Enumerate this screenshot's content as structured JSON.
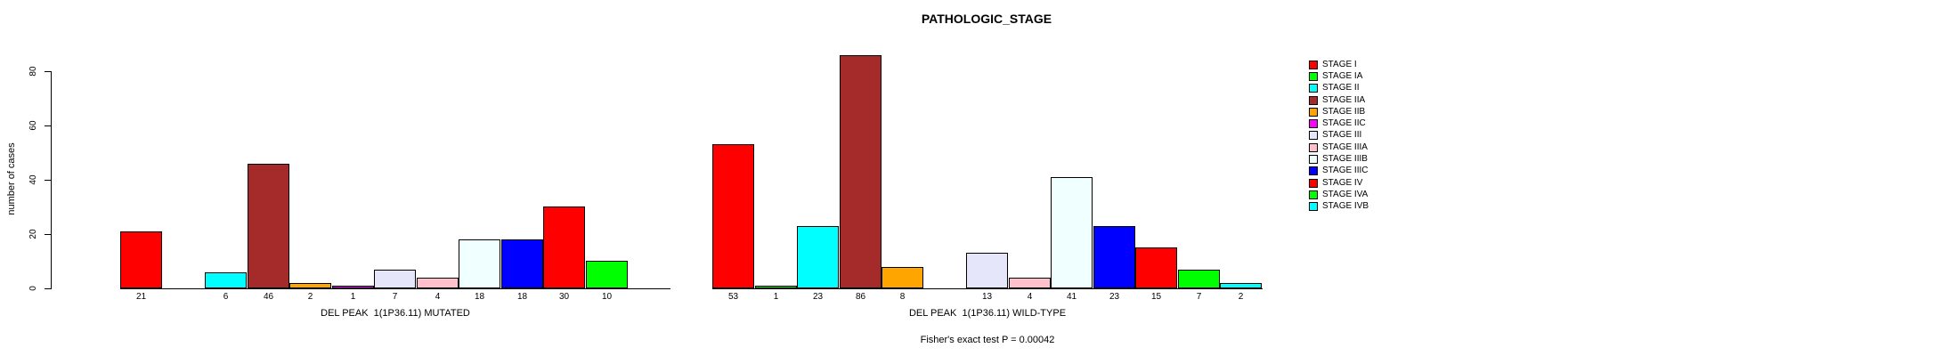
{
  "chart_data": {
    "type": "bar",
    "title": "PATHOLOGIC_STAGE",
    "ylabel": "number of cases",
    "yticks": [
      0,
      20,
      40,
      60,
      80
    ],
    "ylim": [
      0,
      88
    ],
    "grid": false,
    "legend_position": "right",
    "categories": [
      "STAGE I",
      "STAGE IA",
      "STAGE II",
      "STAGE IIA",
      "STAGE IIB",
      "STAGE IIC",
      "STAGE III",
      "STAGE IIIA",
      "STAGE IIIB",
      "STAGE IIIC",
      "STAGE IV",
      "STAGE IVA",
      "STAGE IVB"
    ],
    "colors": [
      "#FF0000",
      "#00FF00",
      "#00FFFF",
      "#A52A2A",
      "#FFA500",
      "#FF00FF",
      "#E6E6FA",
      "#FFC0CB",
      "#F0FFFF",
      "#0000FF",
      "#FF0000",
      "#00FF00",
      "#00FFFF"
    ],
    "series": [
      {
        "name": "DEL PEAK  1(1P36.11) MUTATED",
        "values": [
          21,
          0,
          6,
          46,
          2,
          1,
          7,
          4,
          18,
          18,
          30,
          10,
          0
        ]
      },
      {
        "name": "DEL PEAK  1(1P36.11) WILD-TYPE",
        "values": [
          53,
          1,
          23,
          86,
          8,
          0,
          13,
          4,
          41,
          23,
          15,
          7,
          2
        ]
      }
    ],
    "annotation": "Fisher's exact test P = 0.00042"
  }
}
